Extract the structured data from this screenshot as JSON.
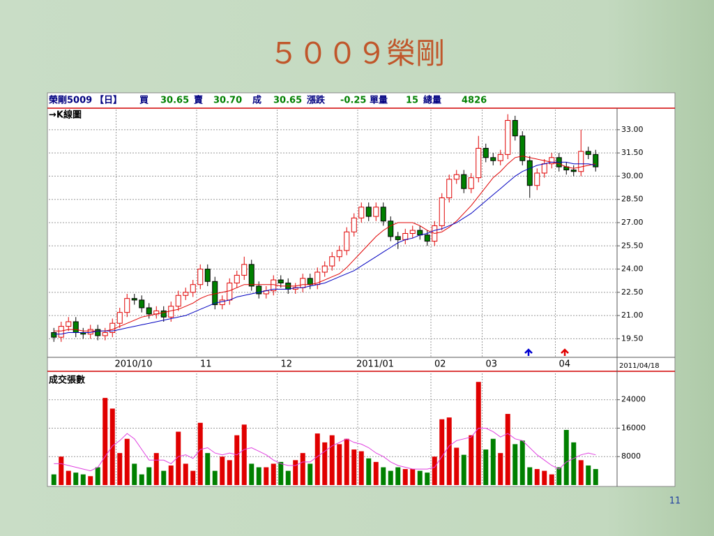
{
  "slide": {
    "title": "５００９榮剛",
    "page_number": "11"
  },
  "header": {
    "stock": "榮剛5009",
    "period": "【日】",
    "items": [
      {
        "label": "買",
        "value": "30.65"
      },
      {
        "label": "賣",
        "value": "30.70"
      },
      {
        "label": "成",
        "value": "30.65"
      },
      {
        "label": "漲跌",
        "value": "-0.25"
      },
      {
        "label": "單量",
        "value": "15"
      },
      {
        "label": "總量",
        "value": "4826"
      }
    ]
  },
  "chart_data": [
    {
      "type": "candlestick",
      "subtitle": "→K線圖",
      "date_label": "2011/04/18",
      "up_color": "#e00000",
      "down_color": "#008000",
      "grid": true,
      "categories": [
        null,
        null,
        null,
        null,
        null,
        null,
        null,
        null,
        null,
        "2010/10",
        null,
        null,
        null,
        null,
        null,
        null,
        null,
        null,
        null,
        null,
        "11",
        null,
        null,
        null,
        null,
        null,
        null,
        null,
        null,
        null,
        null,
        "12",
        null,
        null,
        null,
        null,
        null,
        null,
        null,
        null,
        null,
        null,
        "2011/01",
        null,
        null,
        null,
        null,
        null,
        null,
        null,
        null,
        null,
        "02",
        null,
        null,
        null,
        null,
        null,
        null,
        "03",
        null,
        null,
        null,
        null,
        null,
        null,
        null,
        null,
        null,
        "04",
        null,
        null,
        null,
        null,
        null
      ],
      "open": [
        19.9,
        19.6,
        20.3,
        20.6,
        19.9,
        19.8,
        20.1,
        19.7,
        19.9,
        20.5,
        21.2,
        22.1,
        22.0,
        21.5,
        21.1,
        21.3,
        20.9,
        21.6,
        22.3,
        22.5,
        23.0,
        24.0,
        23.2,
        21.7,
        22.0,
        23.1,
        23.6,
        24.3,
        22.9,
        22.4,
        22.6,
        23.3,
        23.1,
        22.7,
        22.8,
        23.4,
        23.0,
        23.8,
        24.2,
        24.8,
        25.2,
        26.4,
        27.3,
        28.0,
        27.4,
        28.0,
        27.1,
        26.1,
        25.9,
        26.3,
        26.5,
        26.2,
        25.8,
        26.8,
        28.6,
        29.8,
        30.1,
        29.2,
        29.9,
        31.8,
        31.2,
        31.0,
        31.4,
        33.6,
        32.6,
        31.0,
        29.4,
        30.2,
        30.8,
        31.2,
        30.6,
        30.4,
        30.3,
        31.6,
        31.4
      ],
      "high": [
        20.2,
        20.6,
        20.9,
        20.9,
        20.2,
        20.4,
        20.4,
        20.2,
        20.8,
        21.5,
        22.4,
        22.4,
        22.3,
        21.8,
        21.6,
        21.6,
        21.9,
        22.6,
        22.8,
        23.3,
        24.3,
        24.3,
        23.5,
        22.3,
        23.4,
        23.9,
        24.8,
        24.6,
        23.2,
        22.9,
        23.6,
        23.6,
        23.4,
        23.1,
        23.7,
        23.7,
        24.1,
        24.5,
        25.1,
        25.5,
        26.7,
        27.6,
        28.3,
        28.3,
        28.3,
        28.3,
        27.4,
        26.4,
        26.6,
        26.8,
        26.8,
        26.5,
        27.1,
        28.9,
        30.1,
        30.4,
        30.4,
        30.2,
        32.6,
        32.1,
        31.5,
        31.7,
        34.0,
        33.9,
        32.9,
        31.3,
        30.5,
        31.1,
        31.5,
        31.5,
        30.9,
        30.7,
        33.0,
        31.9,
        31.7
      ],
      "low": [
        19.3,
        19.3,
        20.0,
        19.6,
        19.5,
        19.5,
        19.4,
        19.4,
        19.6,
        20.2,
        20.9,
        21.7,
        21.2,
        20.8,
        20.8,
        20.6,
        20.6,
        21.3,
        22.0,
        22.2,
        22.7,
        22.9,
        21.4,
        21.4,
        21.7,
        22.8,
        23.3,
        22.6,
        22.1,
        22.1,
        22.3,
        22.8,
        22.4,
        22.4,
        22.5,
        22.7,
        22.7,
        23.5,
        23.9,
        24.5,
        24.9,
        26.1,
        27.0,
        27.1,
        27.1,
        26.8,
        25.8,
        25.3,
        25.6,
        26.0,
        25.9,
        25.5,
        25.5,
        26.5,
        28.3,
        29.5,
        28.9,
        28.9,
        29.6,
        30.9,
        30.7,
        30.7,
        31.1,
        32.3,
        30.7,
        28.6,
        29.1,
        29.9,
        30.5,
        30.3,
        30.1,
        30.0,
        30.0,
        31.1,
        30.3
      ],
      "close": [
        19.6,
        20.3,
        20.6,
        19.9,
        19.8,
        20.1,
        19.7,
        19.9,
        20.5,
        21.2,
        22.1,
        22.0,
        21.5,
        21.1,
        21.3,
        20.9,
        21.6,
        22.3,
        22.5,
        23.0,
        24.0,
        23.2,
        21.7,
        22.0,
        23.1,
        23.6,
        24.3,
        22.9,
        22.4,
        22.6,
        23.3,
        23.1,
        22.7,
        22.8,
        23.4,
        23.0,
        23.8,
        24.2,
        24.8,
        25.2,
        26.4,
        27.3,
        28.0,
        27.4,
        28.0,
        27.1,
        26.1,
        25.9,
        26.3,
        26.5,
        26.2,
        25.8,
        26.8,
        28.6,
        29.8,
        30.1,
        29.2,
        29.9,
        31.8,
        31.2,
        31.0,
        31.4,
        33.6,
        32.6,
        31.0,
        29.4,
        30.2,
        30.8,
        31.2,
        30.6,
        30.4,
        30.3,
        31.6,
        31.4,
        30.6
      ],
      "series": [
        {
          "color": "#e00000",
          "values": [
            20.0,
            20.0,
            20.1,
            20.1,
            20.0,
            20.0,
            20.0,
            20.0,
            20.1,
            20.3,
            20.5,
            20.7,
            20.9,
            21.0,
            21.1,
            21.2,
            21.3,
            21.4,
            21.6,
            21.8,
            22.1,
            22.3,
            22.4,
            22.5,
            22.6,
            22.8,
            23.0,
            23.0,
            23.0,
            23.0,
            23.0,
            22.9,
            22.9,
            22.9,
            23.0,
            23.0,
            23.1,
            23.3,
            23.5,
            23.7,
            24.1,
            24.6,
            25.1,
            25.6,
            26.1,
            26.5,
            26.8,
            27.0,
            27.0,
            27.0,
            26.8,
            26.5,
            26.3,
            26.4,
            26.7,
            27.1,
            27.6,
            28.1,
            28.7,
            29.3,
            29.9,
            30.3,
            30.8,
            31.2,
            31.3,
            31.2,
            31.1,
            31.0,
            30.9,
            30.8,
            30.6,
            30.5,
            30.6,
            30.7,
            30.8
          ]
        },
        {
          "color": "#0000c0",
          "values": [
            19.8,
            19.8,
            19.9,
            19.9,
            19.9,
            19.9,
            20.0,
            20.0,
            20.0,
            20.1,
            20.2,
            20.3,
            20.4,
            20.5,
            20.6,
            20.7,
            20.8,
            20.9,
            21.0,
            21.2,
            21.4,
            21.6,
            21.8,
            21.9,
            22.0,
            22.2,
            22.3,
            22.4,
            22.5,
            22.6,
            22.7,
            22.7,
            22.7,
            22.8,
            22.8,
            22.9,
            23.0,
            23.1,
            23.3,
            23.5,
            23.7,
            23.9,
            24.2,
            24.5,
            24.8,
            25.1,
            25.4,
            25.7,
            25.9,
            26.0,
            26.2,
            26.3,
            26.5,
            26.6,
            26.8,
            27.0,
            27.3,
            27.6,
            28.0,
            28.4,
            28.8,
            29.2,
            29.6,
            30.0,
            30.3,
            30.5,
            30.7,
            30.8,
            30.9,
            30.9,
            30.9,
            30.8,
            30.8,
            30.8,
            30.7
          ]
        }
      ],
      "ylim": [
        18.3,
        34.3
      ],
      "yticks": [
        {
          "value": 19.5,
          "label": "19.50"
        },
        {
          "value": 21,
          "label": "21.00"
        },
        {
          "value": 22.5,
          "label": "22.50"
        },
        {
          "value": 24,
          "label": "24.00"
        },
        {
          "value": 25.5,
          "label": "25.50"
        },
        {
          "value": 27,
          "label": "27.00"
        },
        {
          "value": 28.5,
          "label": "28.50"
        },
        {
          "value": 30,
          "label": "30.00"
        },
        {
          "value": 31.5,
          "label": "31.50"
        },
        {
          "value": 33,
          "label": "33.00"
        }
      ]
    },
    {
      "type": "bar",
      "title": "成交張數",
      "grid": true,
      "values": [
        3000,
        8000,
        4000,
        3500,
        3000,
        2500,
        5000,
        24500,
        21500,
        9000,
        13000,
        6000,
        3000,
        5000,
        9000,
        4000,
        5500,
        15000,
        6000,
        4000,
        17500,
        9000,
        4000,
        8000,
        7000,
        14000,
        17000,
        6000,
        5000,
        5000,
        6000,
        6500,
        4000,
        7000,
        9000,
        6000,
        14500,
        12000,
        14000,
        11500,
        13000,
        10000,
        9500,
        7500,
        6500,
        5000,
        4000,
        5000,
        4500,
        4500,
        4000,
        3500,
        8000,
        18500,
        19000,
        10500,
        8500,
        14000,
        29000,
        10000,
        13000,
        9000,
        20000,
        11500,
        12500,
        5000,
        4500,
        4000,
        3000,
        5000,
        15500,
        12000,
        7000,
        5500,
        4500
      ],
      "series": [
        {
          "color": "#e040e0",
          "values": [
            6000,
            6000,
            5500,
            5000,
            4500,
            4000,
            5000,
            8000,
            11000,
            12500,
            14500,
            13000,
            10000,
            7000,
            7000,
            7000,
            6000,
            8000,
            8500,
            7500,
            10000,
            10500,
            9000,
            8500,
            9000,
            8500,
            10000,
            10500,
            9500,
            8500,
            7000,
            6000,
            5500,
            5500,
            6500,
            6500,
            8000,
            9500,
            11000,
            12000,
            13000,
            12000,
            11500,
            10500,
            9000,
            8000,
            6500,
            5500,
            5000,
            4500,
            4500,
            4500,
            5000,
            8000,
            11000,
            12500,
            13000,
            13500,
            16000,
            16000,
            15000,
            13500,
            14500,
            13000,
            12500,
            10500,
            8500,
            7000,
            5500,
            4500,
            6500,
            7500,
            8500,
            9000,
            8500
          ]
        }
      ],
      "ylim": [
        0,
        31400
      ],
      "yticks": [
        8000,
        16000,
        24000
      ]
    }
  ]
}
